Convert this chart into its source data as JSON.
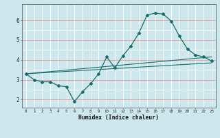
{
  "title": "",
  "xlabel": "Humidex (Indice chaleur)",
  "bg_color": "#cce8ec",
  "grid_color_v": "#ffffff",
  "grid_color_h_red": "#e8a0a0",
  "line_color": "#1a6b6b",
  "xlim": [
    -0.5,
    23.5
  ],
  "ylim": [
    1.6,
    6.8
  ],
  "xticks": [
    0,
    1,
    2,
    3,
    4,
    5,
    6,
    7,
    8,
    9,
    10,
    11,
    12,
    13,
    14,
    15,
    16,
    17,
    18,
    19,
    20,
    21,
    22,
    23
  ],
  "yticks": [
    2,
    3,
    4,
    5,
    6
  ],
  "line1_x": [
    0,
    1,
    2,
    3,
    4,
    5,
    6,
    7,
    8,
    9,
    10,
    11,
    12,
    13,
    14,
    15,
    16,
    17,
    18,
    19,
    20,
    21,
    22,
    23
  ],
  "line1_y": [
    3.3,
    3.0,
    2.9,
    2.9,
    2.7,
    2.65,
    1.9,
    2.4,
    2.8,
    3.3,
    4.15,
    3.6,
    4.2,
    4.7,
    5.35,
    6.25,
    6.35,
    6.3,
    5.95,
    5.2,
    4.55,
    4.25,
    4.15,
    3.95
  ],
  "line2_x": [
    0,
    23
  ],
  "line2_y": [
    3.3,
    3.85
  ],
  "line3_x": [
    0,
    23
  ],
  "line3_y": [
    3.3,
    4.15
  ]
}
